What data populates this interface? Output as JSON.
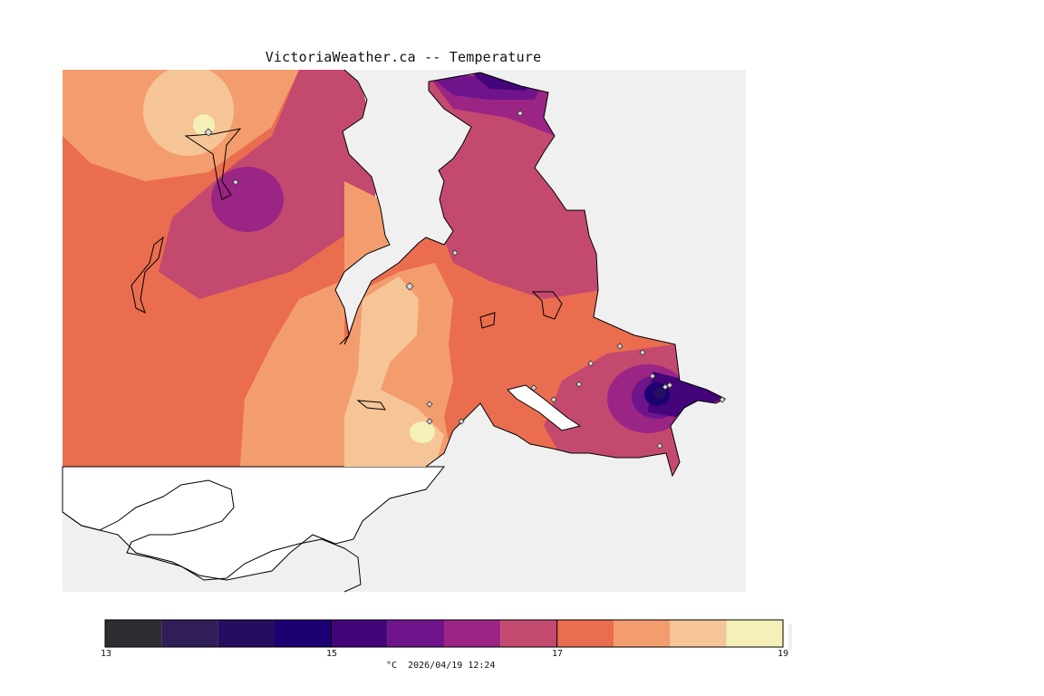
{
  "title": "VictoriaWeather.ca -- Temperature",
  "colors": {
    "land_bg": "#f0f0f0",
    "water": "#ffffff",
    "coast": "#000000",
    "station_marker": "#d9d9d9"
  },
  "legend": {
    "unit": "°C",
    "timestamp": "2026/04/19 12:24",
    "tick_labels": [
      "13",
      "15",
      "17",
      "19"
    ],
    "min": 13,
    "max": 19,
    "bins": [
      {
        "from": 13.0,
        "to": 13.5,
        "color": "#2f2d32"
      },
      {
        "from": 13.5,
        "to": 14.0,
        "color": "#2f1e58"
      },
      {
        "from": 14.0,
        "to": 14.5,
        "color": "#250d5f"
      },
      {
        "from": 14.5,
        "to": 15.0,
        "color": "#1c0073"
      },
      {
        "from": 15.0,
        "to": 15.5,
        "color": "#430579"
      },
      {
        "from": 15.5,
        "to": 16.0,
        "color": "#6f148b"
      },
      {
        "from": 16.0,
        "to": 16.5,
        "color": "#9a2584"
      },
      {
        "from": 16.5,
        "to": 17.0,
        "color": "#c34a6e"
      },
      {
        "from": 17.0,
        "to": 17.5,
        "color": "#ea6d4f"
      },
      {
        "from": 17.5,
        "to": 18.0,
        "color": "#f39d6e"
      },
      {
        "from": 18.0,
        "to": 18.5,
        "color": "#f5c597"
      },
      {
        "from": 18.5,
        "to": 19.0,
        "color": "#f5efb8"
      }
    ]
  }
}
